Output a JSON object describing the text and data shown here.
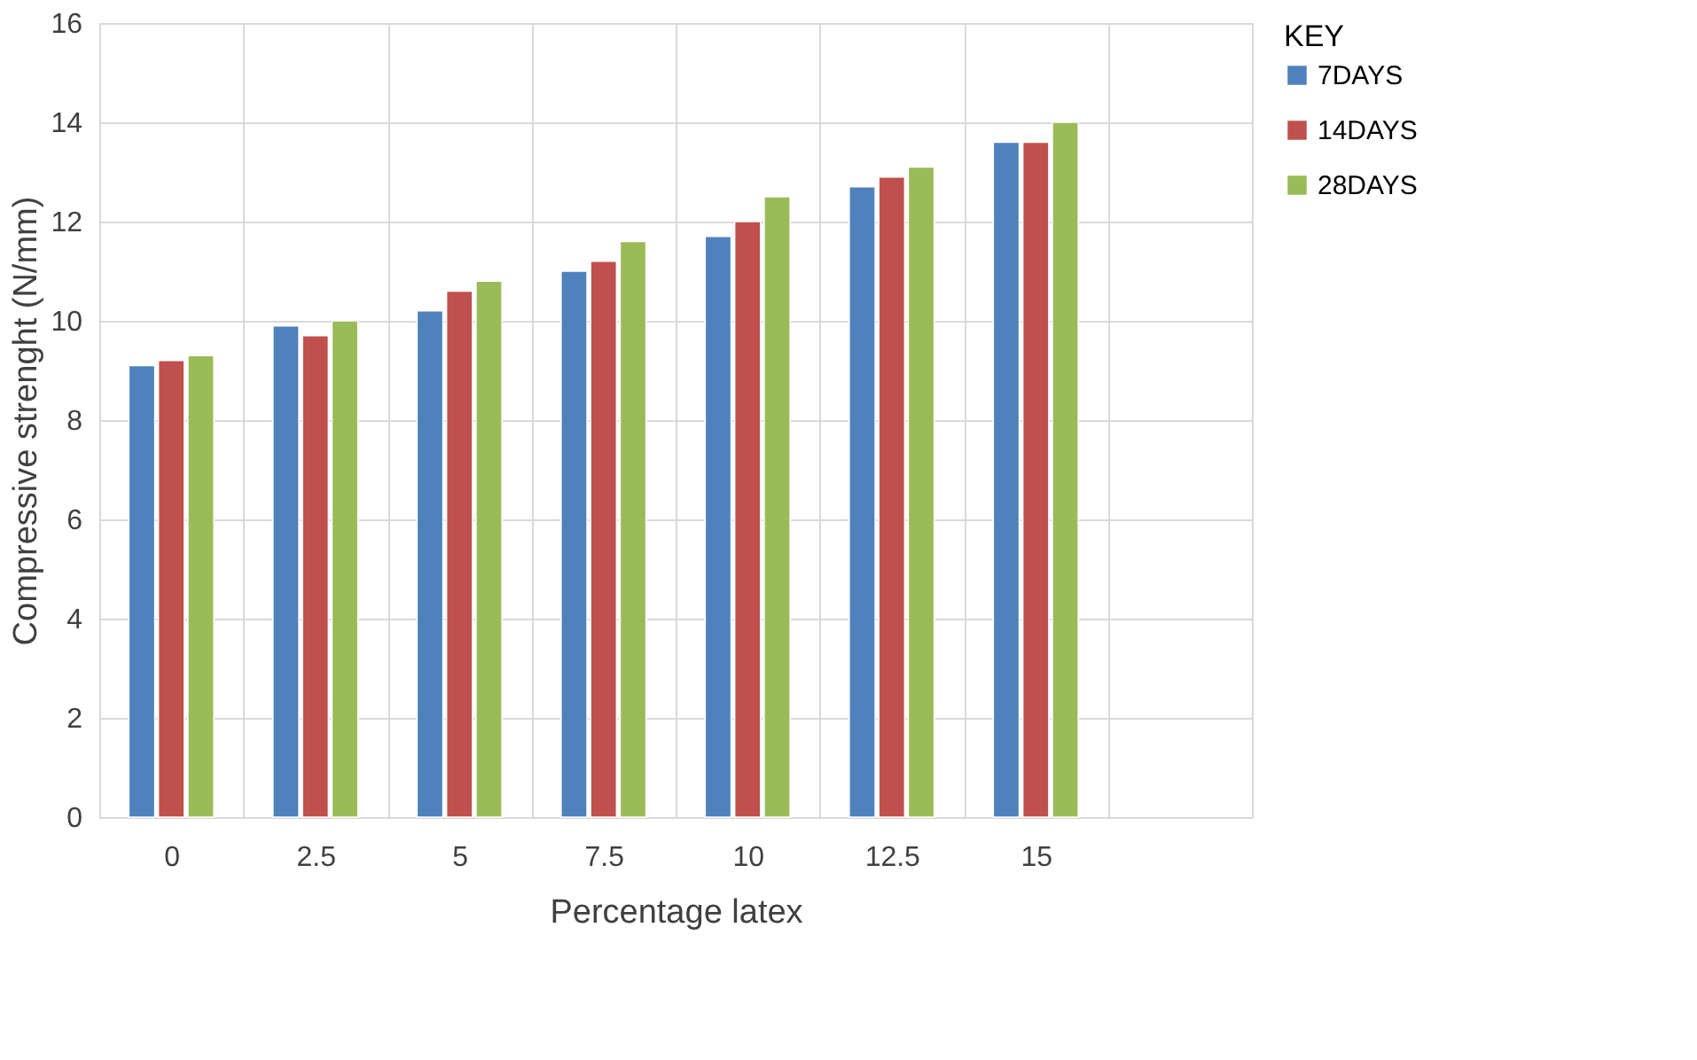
{
  "chart_data": {
    "type": "bar",
    "categories": [
      "0",
      "2.5",
      "5",
      "7.5",
      "10",
      "12.5",
      "15",
      null
    ],
    "xlabel": "Percentage latex",
    "ylabel": "Compressive strenght (N/mm)",
    "legend_title": "KEY",
    "series": [
      {
        "name": "7DAYS",
        "color": "#4f81bd",
        "values": [
          9.1,
          9.9,
          10.2,
          11.0,
          11.7,
          12.7,
          13.6,
          null
        ]
      },
      {
        "name": "14DAYS",
        "color": "#c0504d",
        "values": [
          9.2,
          9.7,
          10.6,
          11.2,
          12.0,
          12.9,
          13.6,
          null
        ]
      },
      {
        "name": "28DAYS",
        "color": "#9bbb59",
        "values": [
          9.3,
          10.0,
          10.8,
          11.6,
          12.5,
          13.1,
          14.0,
          null
        ]
      }
    ],
    "ylim": [
      0,
      16
    ],
    "yticks": [
      0,
      2,
      4,
      6,
      8,
      10,
      12,
      14,
      16
    ],
    "grid": true,
    "legend": "right"
  }
}
